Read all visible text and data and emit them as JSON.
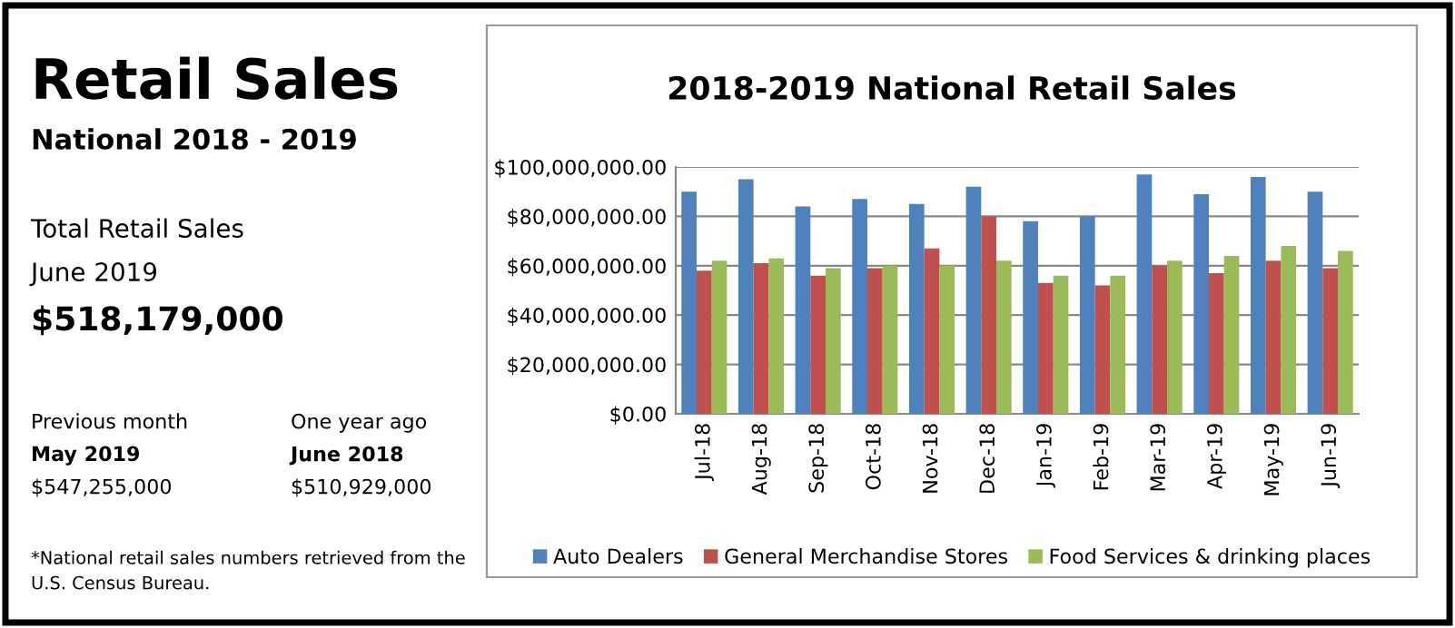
{
  "chart_data": [
    {
      "type": "other",
      "title": "Retail Sales",
      "subtitle": "National 2018 - 2019",
      "annotations": [
        "Total Retail Sales",
        "June 2019",
        "$518,179,000",
        "Previous month",
        "May 2019",
        "$547,255,000",
        "One year ago",
        "June 2018",
        "$510,929,000",
        "*National retail sales numbers retrieved from the U.S. Census Bureau."
      ]
    },
    {
      "type": "bar",
      "title": "2018-2019 National Retail Sales",
      "categories": [
        "Jul-18",
        "Aug-18",
        "Sep-18",
        "Oct-18",
        "Nov-18",
        "Dec-18",
        "Jan-19",
        "Feb-19",
        "Mar-19",
        "Apr-19",
        "May-19",
        "Jun-19"
      ],
      "series": [
        {
          "name": "Auto Dealers",
          "color": "#4f81bd",
          "values": [
            90000000,
            95000000,
            84000000,
            87000000,
            85000000,
            92000000,
            78000000,
            80000000,
            97000000,
            89000000,
            96000000,
            90000000
          ]
        },
        {
          "name": "General Merchandise Stores",
          "color": "#c0504d",
          "values": [
            58000000,
            61000000,
            56000000,
            59000000,
            67000000,
            80000000,
            53000000,
            52000000,
            60000000,
            57000000,
            62000000,
            59000000
          ]
        },
        {
          "name": "Food Services & drinking places",
          "color": "#9bbb59",
          "values": [
            62000000,
            63000000,
            59000000,
            60000000,
            60000000,
            62000000,
            56000000,
            56000000,
            62000000,
            64000000,
            68000000,
            66000000
          ]
        }
      ],
      "ylim": [
        0,
        100000000
      ],
      "yticks": [
        {
          "value": 0,
          "label": "$0.00"
        },
        {
          "value": 20000000,
          "label": "$20,000,000.00"
        },
        {
          "value": 40000000,
          "label": "$40,000,000.00"
        },
        {
          "value": 60000000,
          "label": "$60,000,000.00"
        },
        {
          "value": 80000000,
          "label": "$80,000,000.00"
        },
        {
          "value": 100000000,
          "label": "$100,000,000.00"
        }
      ],
      "grid": "y",
      "legend": "bottom"
    }
  ]
}
